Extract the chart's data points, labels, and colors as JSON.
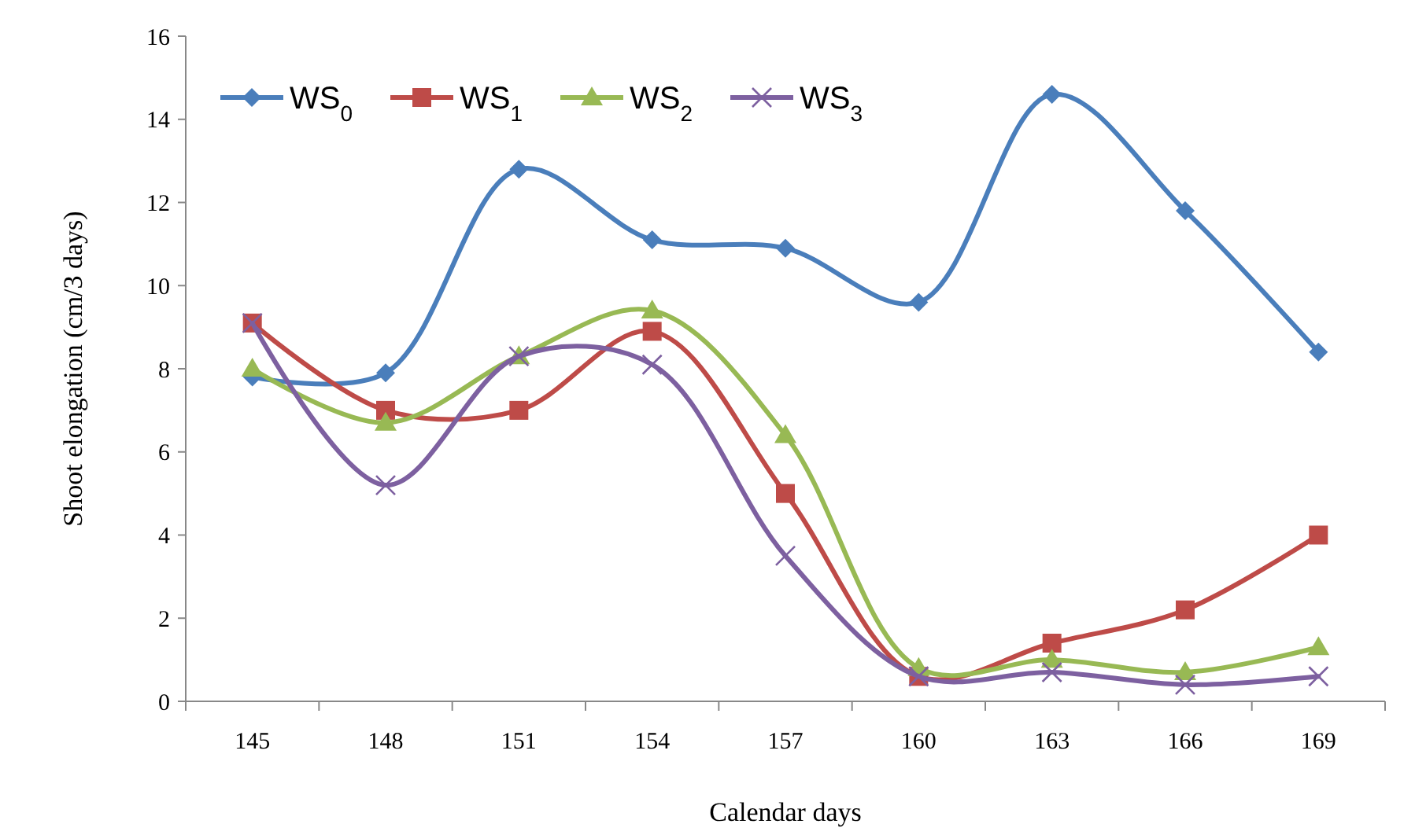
{
  "chart_data": {
    "type": "line",
    "xlabel": "Calendar days",
    "ylabel": "Shoot elongation (cm/3 days)",
    "categories": [
      "145",
      "148",
      "151",
      "154",
      "157",
      "160",
      "163",
      "166",
      "169"
    ],
    "ylim": [
      0,
      16
    ],
    "yticks": [
      0,
      2,
      4,
      6,
      8,
      10,
      12,
      14,
      16
    ],
    "grid": false,
    "legend": "top left",
    "series": [
      {
        "name": "WS$_{0}$",
        "color": "#4a7ebb",
        "marker": "diamond",
        "values": [
          7.8,
          7.9,
          12.8,
          11.1,
          10.9,
          9.6,
          14.6,
          11.8,
          8.4
        ]
      },
      {
        "name": "WS$_{1}$",
        "color": "#be4b48",
        "marker": "square",
        "values": [
          9.1,
          7.0,
          7.0,
          8.9,
          5.0,
          0.6,
          1.4,
          2.2,
          4.0
        ]
      },
      {
        "name": "WS$_{2}$",
        "color": "#98b954",
        "marker": "triangle",
        "values": [
          8.0,
          6.7,
          8.3,
          9.4,
          6.4,
          0.8,
          1.0,
          0.7,
          1.3
        ]
      },
      {
        "name": "WS$_{3}$",
        "color": "#7d60a0",
        "marker": "cross",
        "values": [
          9.1,
          5.2,
          8.3,
          8.1,
          3.5,
          0.6,
          0.7,
          0.4,
          0.6
        ]
      }
    ]
  }
}
